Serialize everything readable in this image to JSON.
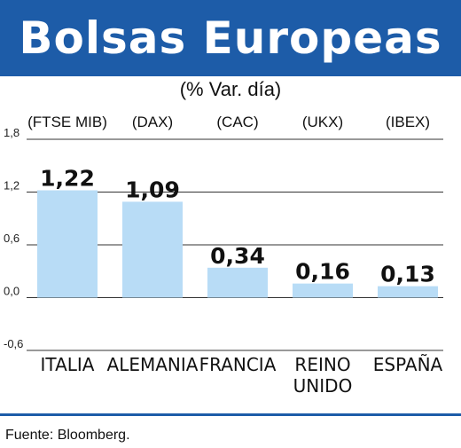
{
  "title": "Bolsas Europeas",
  "subtitle": "(% Var. día)",
  "source": "Fuente: Bloomberg.",
  "colors": {
    "header": "#1d5ca8",
    "bar": "#b8dcf6",
    "grid": "#333333"
  },
  "chart_data": {
    "type": "bar",
    "categories": [
      [
        "ITALIA"
      ],
      [
        "ALEMANIA"
      ],
      [
        "FRANCIA"
      ],
      [
        "REINO",
        "UNIDO"
      ],
      [
        "ESPAÑA"
      ]
    ],
    "codes": [
      "(FTSE MIB)",
      "(DAX)",
      "(CAC)",
      "(UKX)",
      "(IBEX)"
    ],
    "values": [
      1.22,
      1.09,
      0.34,
      0.16,
      0.13
    ],
    "value_labels": [
      "1,22",
      "1,09",
      "0,34",
      "0,16",
      "0,13"
    ],
    "ylim": [
      -0.6,
      1.8
    ],
    "yticks": [
      1.8,
      1.2,
      0.6,
      0.0,
      -0.6
    ],
    "ytick_labels": [
      "1,8",
      "1,2",
      "0,6",
      "0,0",
      "-0,6"
    ],
    "grid": true
  }
}
